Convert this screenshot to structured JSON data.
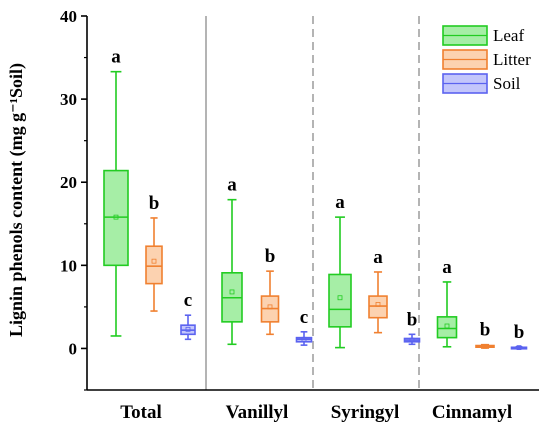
{
  "chart_data": {
    "type": "box",
    "ylabel": "Lignin phenols content (mg g⁻¹Soil)",
    "ylim": [
      -5,
      40
    ],
    "yticks": [
      0,
      10,
      20,
      30,
      40
    ],
    "categories": [
      "Total",
      "Vanillyl",
      "Syringyl",
      "Cinnamyl"
    ],
    "series_styles": [
      {
        "name": "Leaf",
        "stroke": "#22cc22",
        "fill": "#a6eea6"
      },
      {
        "name": "Litter",
        "stroke": "#f08030",
        "fill": "#fcd2b0"
      },
      {
        "name": "Soil",
        "stroke": "#5b63f0",
        "fill": "#c3c6fb"
      }
    ],
    "series": [
      {
        "name": "Leaf",
        "boxes": [
          {
            "min": 1.5,
            "q1": 10.0,
            "median": 15.8,
            "q3": 21.4,
            "max": 33.3,
            "mean": 15.8,
            "letter": "a"
          },
          {
            "min": 0.5,
            "q1": 3.2,
            "median": 6.1,
            "q3": 9.1,
            "max": 17.9,
            "mean": 6.8,
            "letter": "a"
          },
          {
            "min": 0.1,
            "q1": 2.6,
            "median": 4.7,
            "q3": 8.9,
            "max": 15.8,
            "mean": 6.1,
            "letter": "a"
          },
          {
            "min": 0.2,
            "q1": 1.3,
            "median": 2.4,
            "q3": 3.8,
            "max": 8.0,
            "mean": 2.7,
            "letter": "a"
          }
        ]
      },
      {
        "name": "Litter",
        "boxes": [
          {
            "min": 4.5,
            "q1": 7.8,
            "median": 9.9,
            "q3": 12.3,
            "max": 15.7,
            "mean": 10.5,
            "letter": "b"
          },
          {
            "min": 1.7,
            "q1": 3.2,
            "median": 4.8,
            "q3": 6.3,
            "max": 9.3,
            "mean": 5.0,
            "letter": "b"
          },
          {
            "min": 1.9,
            "q1": 3.7,
            "median": 5.1,
            "q3": 6.3,
            "max": 9.2,
            "mean": 5.3,
            "letter": "a"
          },
          {
            "min": 0.05,
            "q1": 0.15,
            "median": 0.25,
            "q3": 0.35,
            "max": 0.45,
            "mean": 0.25,
            "letter": "b"
          }
        ]
      },
      {
        "name": "Soil",
        "boxes": [
          {
            "min": 1.1,
            "q1": 1.7,
            "median": 2.2,
            "q3": 2.8,
            "max": 4.0,
            "mean": 2.3,
            "letter": "c"
          },
          {
            "min": 0.4,
            "q1": 0.8,
            "median": 1.1,
            "q3": 1.3,
            "max": 2.0,
            "mean": 1.1,
            "letter": "c"
          },
          {
            "min": 0.5,
            "q1": 0.8,
            "median": 1.0,
            "q3": 1.2,
            "max": 1.7,
            "mean": 1.0,
            "letter": "b"
          },
          {
            "min": 0.02,
            "q1": 0.06,
            "median": 0.1,
            "q3": 0.14,
            "max": 0.2,
            "mean": 0.1,
            "letter": "b"
          }
        ]
      }
    ],
    "separators": [
      {
        "style": "solid",
        "color": "#b4b4b4"
      },
      {
        "style": "dashed",
        "color": "#b4b4b4"
      },
      {
        "style": "dashed",
        "color": "#b4b4b4"
      }
    ],
    "legend": {
      "position": "top-right",
      "entries": [
        "Leaf",
        "Litter",
        "Soil"
      ]
    },
    "grid": false
  }
}
